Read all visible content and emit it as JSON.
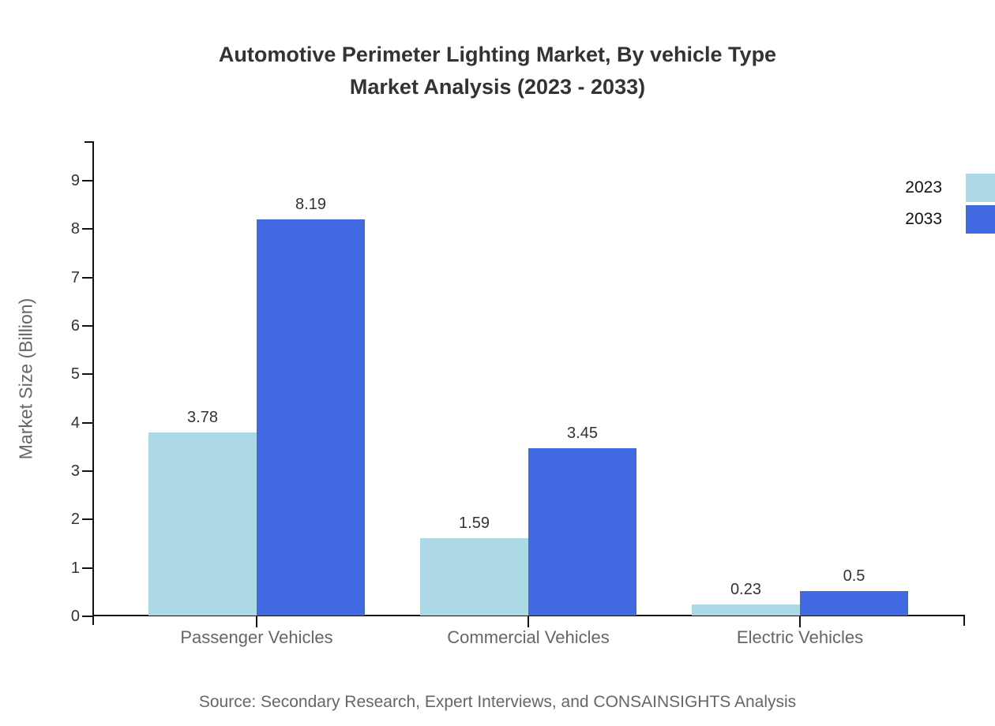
{
  "chart_data": {
    "type": "bar",
    "title": "Automotive Perimeter Lighting Market, By vehicle Type",
    "subtitle": "Market Analysis (2023 - 2033)",
    "ylabel": "Market Size (Billion)",
    "ylim": [
      0,
      9
    ],
    "yticks": [
      0,
      1,
      2,
      3,
      4,
      5,
      6,
      7,
      8,
      9
    ],
    "grid": false,
    "legend_position": "top-right",
    "categories": [
      "Passenger Vehicles",
      "Commercial Vehicles",
      "Electric Vehicles"
    ],
    "series": [
      {
        "name": "2023",
        "color": "#ADD8E6",
        "values": [
          3.78,
          1.59,
          0.23
        ]
      },
      {
        "name": "2033",
        "color": "#4169E1",
        "values": [
          8.19,
          3.45,
          0.5
        ]
      }
    ],
    "value_labels": [
      "3.78",
      "8.19",
      "1.59",
      "3.45",
      "0.23",
      "0.5"
    ],
    "axis_color": "#111111",
    "source": "Source: Secondary Research, Expert Interviews, and CONSAINSIGHTS Analysis"
  }
}
